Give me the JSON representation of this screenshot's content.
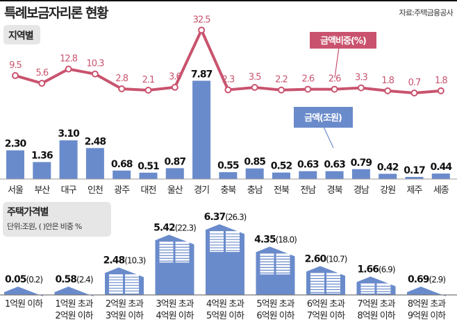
{
  "header": {
    "title": "특례보금자리론 현황",
    "source": "자료:주택금융공사"
  },
  "colors": {
    "bar": "#6a8bcb",
    "line": "#c9536e",
    "label_box": "#e6e6e6"
  },
  "chart_data": [
    {
      "type": "bar+line",
      "section_label": "지역별",
      "categories": [
        "서울",
        "부산",
        "대구",
        "인천",
        "광주",
        "대전",
        "울산",
        "경기",
        "충북",
        "충남",
        "전북",
        "전남",
        "경북",
        "경남",
        "강원",
        "제주",
        "세종"
      ],
      "series": [
        {
          "name": "금액(조원)",
          "type": "bar",
          "values": [
            2.3,
            1.36,
            3.1,
            2.48,
            0.68,
            0.51,
            0.87,
            7.87,
            0.55,
            0.85,
            0.52,
            0.63,
            0.63,
            0.79,
            0.42,
            0.17,
            0.44
          ]
        },
        {
          "name": "금액비중(%)",
          "type": "line",
          "values": [
            9.5,
            5.6,
            12.8,
            10.3,
            2.8,
            2.1,
            3.6,
            32.5,
            2.3,
            3.5,
            2.2,
            2.6,
            2.6,
            3.3,
            1.8,
            0.7,
            1.8
          ]
        }
      ]
    },
    {
      "type": "bar",
      "section_label": "주택가격별",
      "unit_note": "단위:조원, (   )안은 비중 %",
      "categories": [
        [
          "1억원 이하",
          ""
        ],
        [
          "1억원 초과",
          "2억원 이하"
        ],
        [
          "2억원 초과",
          "3억원 이하"
        ],
        [
          "3억원 초과",
          "4억원 이하"
        ],
        [
          "4억원 초과",
          "5억원 이하"
        ],
        [
          "5억원 초과",
          "6억원 이하"
        ],
        [
          "6억원 초과",
          "7억원 이하"
        ],
        [
          "7억원 초과",
          "8억원 이하"
        ],
        [
          "8억원 초과",
          "9억원 이하"
        ]
      ],
      "values": [
        0.05,
        0.58,
        2.48,
        5.42,
        6.37,
        4.35,
        2.6,
        1.66,
        0.69
      ],
      "shares": [
        "0.2",
        "2.4",
        "10.3",
        "22.3",
        "26.3",
        "18.0",
        "10.7",
        "6.9",
        "2.9"
      ],
      "value_labels": [
        "0.05",
        "0.58",
        "2.48",
        "5.42",
        "6.37",
        "4.35",
        "2.60",
        "1.66",
        "0.69"
      ]
    }
  ]
}
